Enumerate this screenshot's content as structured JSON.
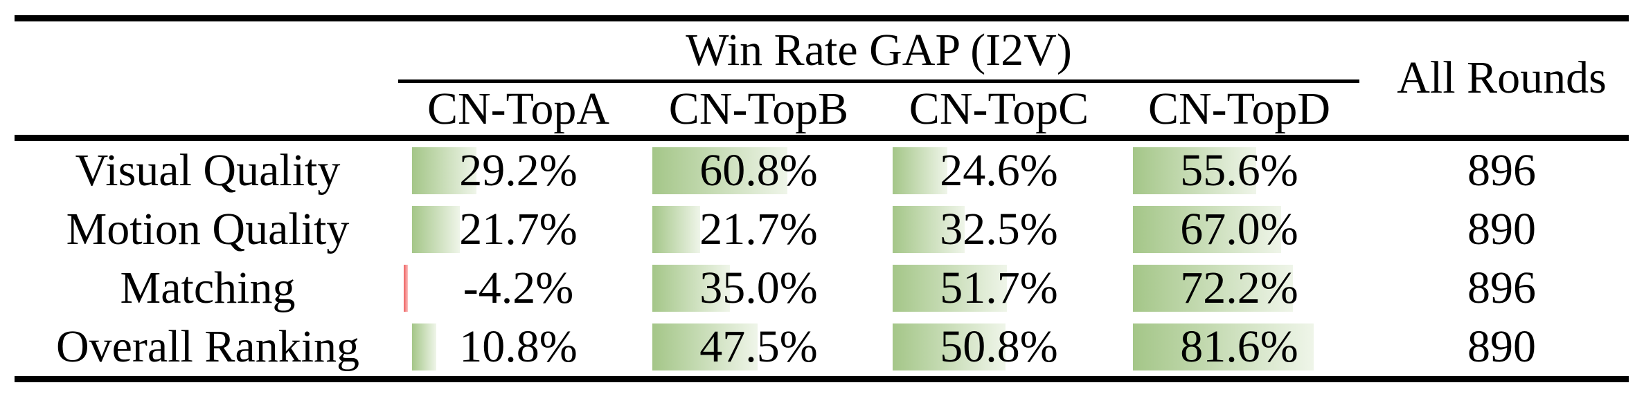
{
  "table": {
    "title": "Win Rate GAP (I2V)",
    "all_rounds_header": "All Rounds",
    "columns": [
      "CN-TopA",
      "CN-TopB",
      "CN-TopC",
      "CN-TopD"
    ],
    "rows": [
      {
        "label": "Visual Quality",
        "values": [
          29.2,
          60.8,
          24.6,
          55.6
        ],
        "display": [
          "29.2%",
          "60.8%",
          "24.6%",
          "55.6%"
        ],
        "all_rounds": "896"
      },
      {
        "label": "Motion Quality",
        "values": [
          21.7,
          21.7,
          32.5,
          67.0
        ],
        "display": [
          "21.7%",
          "21.7%",
          "32.5%",
          "67.0%"
        ],
        "all_rounds": "890"
      },
      {
        "label": "Matching",
        "values": [
          -4.2,
          35.0,
          51.7,
          72.2
        ],
        "display": [
          "-4.2%",
          "35.0%",
          "51.7%",
          "72.2%"
        ],
        "all_rounds": "896"
      },
      {
        "label": "Overall Ranking",
        "values": [
          10.8,
          47.5,
          50.8,
          81.6
        ],
        "display": [
          "10.8%",
          "47.5%",
          "50.8%",
          "81.6%"
        ],
        "all_rounds": "890"
      }
    ],
    "colors": {
      "bar_positive_start": "#a4c688",
      "bar_positive_end": "#eff5e9",
      "bar_negative_start": "#ee5f5f",
      "bar_negative_end": "#fbc0c0",
      "rule": "#000000",
      "text": "#000000"
    }
  },
  "chart_data": {
    "type": "table",
    "title": "Win Rate GAP (I2V)",
    "columns": [
      "CN-TopA",
      "CN-TopB",
      "CN-TopC",
      "CN-TopD",
      "All Rounds"
    ],
    "rows": [
      {
        "label": "Visual Quality",
        "win_rate_gap_pct": [
          29.2,
          60.8,
          24.6,
          55.6
        ],
        "all_rounds": 896
      },
      {
        "label": "Motion Quality",
        "win_rate_gap_pct": [
          21.7,
          21.7,
          32.5,
          67.0
        ],
        "all_rounds": 890
      },
      {
        "label": "Matching",
        "win_rate_gap_pct": [
          -4.2,
          35.0,
          51.7,
          72.2
        ],
        "all_rounds": 896
      },
      {
        "label": "Overall Ranking",
        "win_rate_gap_pct": [
          10.8,
          47.5,
          50.8,
          81.6
        ],
        "all_rounds": 890
      }
    ],
    "cell_style": "gradient data bars proportional to percentage; green for positive values, red sliver for negative"
  }
}
